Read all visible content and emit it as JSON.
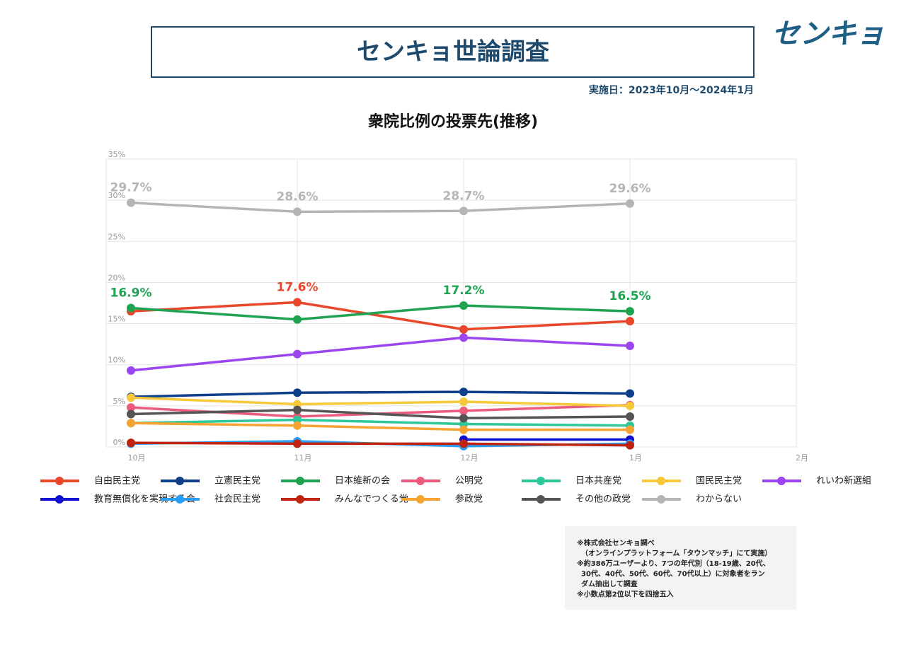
{
  "header": {
    "title": "センキョ世論調査",
    "logo": "センキョ",
    "date": "実施日：2023年10月～2024年1月"
  },
  "notes": [
    "※株式会社センキョ調べ",
    "（オンラインプラットフォーム「タウンマッチ」にて実施）",
    "※約386万ユーザーより、7つの年代別（18-19歳、20代、",
    "30代、40代、50代、60代、70代以上）に対象者をラン",
    "ダム抽出して調査",
    "※小数点第2位以下を四捨五入"
  ],
  "chart_data": {
    "type": "line",
    "title": "衆院比例の投票先(推移)",
    "categories": [
      "10月",
      "11月",
      "12月",
      "1月",
      "2月"
    ],
    "ylim": [
      0,
      35
    ],
    "yticks": [
      {
        "value": 0,
        "label": "0%"
      },
      {
        "value": 5,
        "label": "5%"
      },
      {
        "value": 10,
        "label": "10%"
      },
      {
        "value": 15,
        "label": "15%"
      },
      {
        "value": 20,
        "label": "20%"
      },
      {
        "value": 25,
        "label": "25%"
      },
      {
        "value": 30,
        "label": "30%"
      },
      {
        "value": 35,
        "label": "35%"
      }
    ],
    "grid": true,
    "series": [
      {
        "name": "自由民主党",
        "color": "#e8472a",
        "values": [
          16.5,
          17.6,
          14.3,
          15.3,
          null
        ],
        "value_labels": [
          null,
          "17.6%",
          null,
          null,
          null
        ]
      },
      {
        "name": "立憲民主党",
        "color": "#0d3f8a",
        "values": [
          6.1,
          6.6,
          6.7,
          6.5,
          null
        ]
      },
      {
        "name": "日本維新の会",
        "color": "#1fa353",
        "values": [
          16.9,
          15.5,
          17.2,
          16.5,
          null
        ],
        "value_labels": [
          "16.9%",
          null,
          "17.2%",
          "16.5%",
          null
        ]
      },
      {
        "name": "公明党",
        "color": "#ec5b7e",
        "values": [
          4.8,
          3.7,
          4.4,
          5.1,
          null
        ]
      },
      {
        "name": "日本共産党",
        "color": "#2ec79a",
        "values": [
          2.9,
          3.3,
          2.8,
          2.6,
          null
        ]
      },
      {
        "name": "国民民主党",
        "color": "#f5c93a",
        "values": [
          6.0,
          5.2,
          5.5,
          5.0,
          null
        ]
      },
      {
        "name": "れいわ新選組",
        "color": "#9b45f0",
        "values": [
          9.3,
          11.3,
          13.3,
          12.3,
          null
        ]
      },
      {
        "name": "教育無償化を実現する会",
        "color": "#1010d0",
        "values": [
          null,
          null,
          0.9,
          0.9,
          null
        ]
      },
      {
        "name": "社会民主党",
        "color": "#2a9df4",
        "values": [
          0.4,
          0.7,
          0.1,
          0.4,
          null
        ]
      },
      {
        "name": "みんなでつくる党",
        "color": "#c0230f",
        "values": [
          0.5,
          0.4,
          0.4,
          0.2,
          null
        ]
      },
      {
        "name": "参政党",
        "color": "#f6a331",
        "values": [
          2.9,
          2.6,
          2.1,
          2.1,
          null
        ]
      },
      {
        "name": "その他の政党",
        "color": "#555555",
        "values": [
          4.0,
          4.5,
          3.5,
          3.7,
          null
        ]
      },
      {
        "name": "わからない",
        "color": "#b5b5b5",
        "values": [
          29.7,
          28.6,
          28.7,
          29.6,
          null
        ],
        "value_labels": [
          "29.7%",
          "28.6%",
          "28.7%",
          "29.6%",
          null
        ]
      }
    ]
  }
}
